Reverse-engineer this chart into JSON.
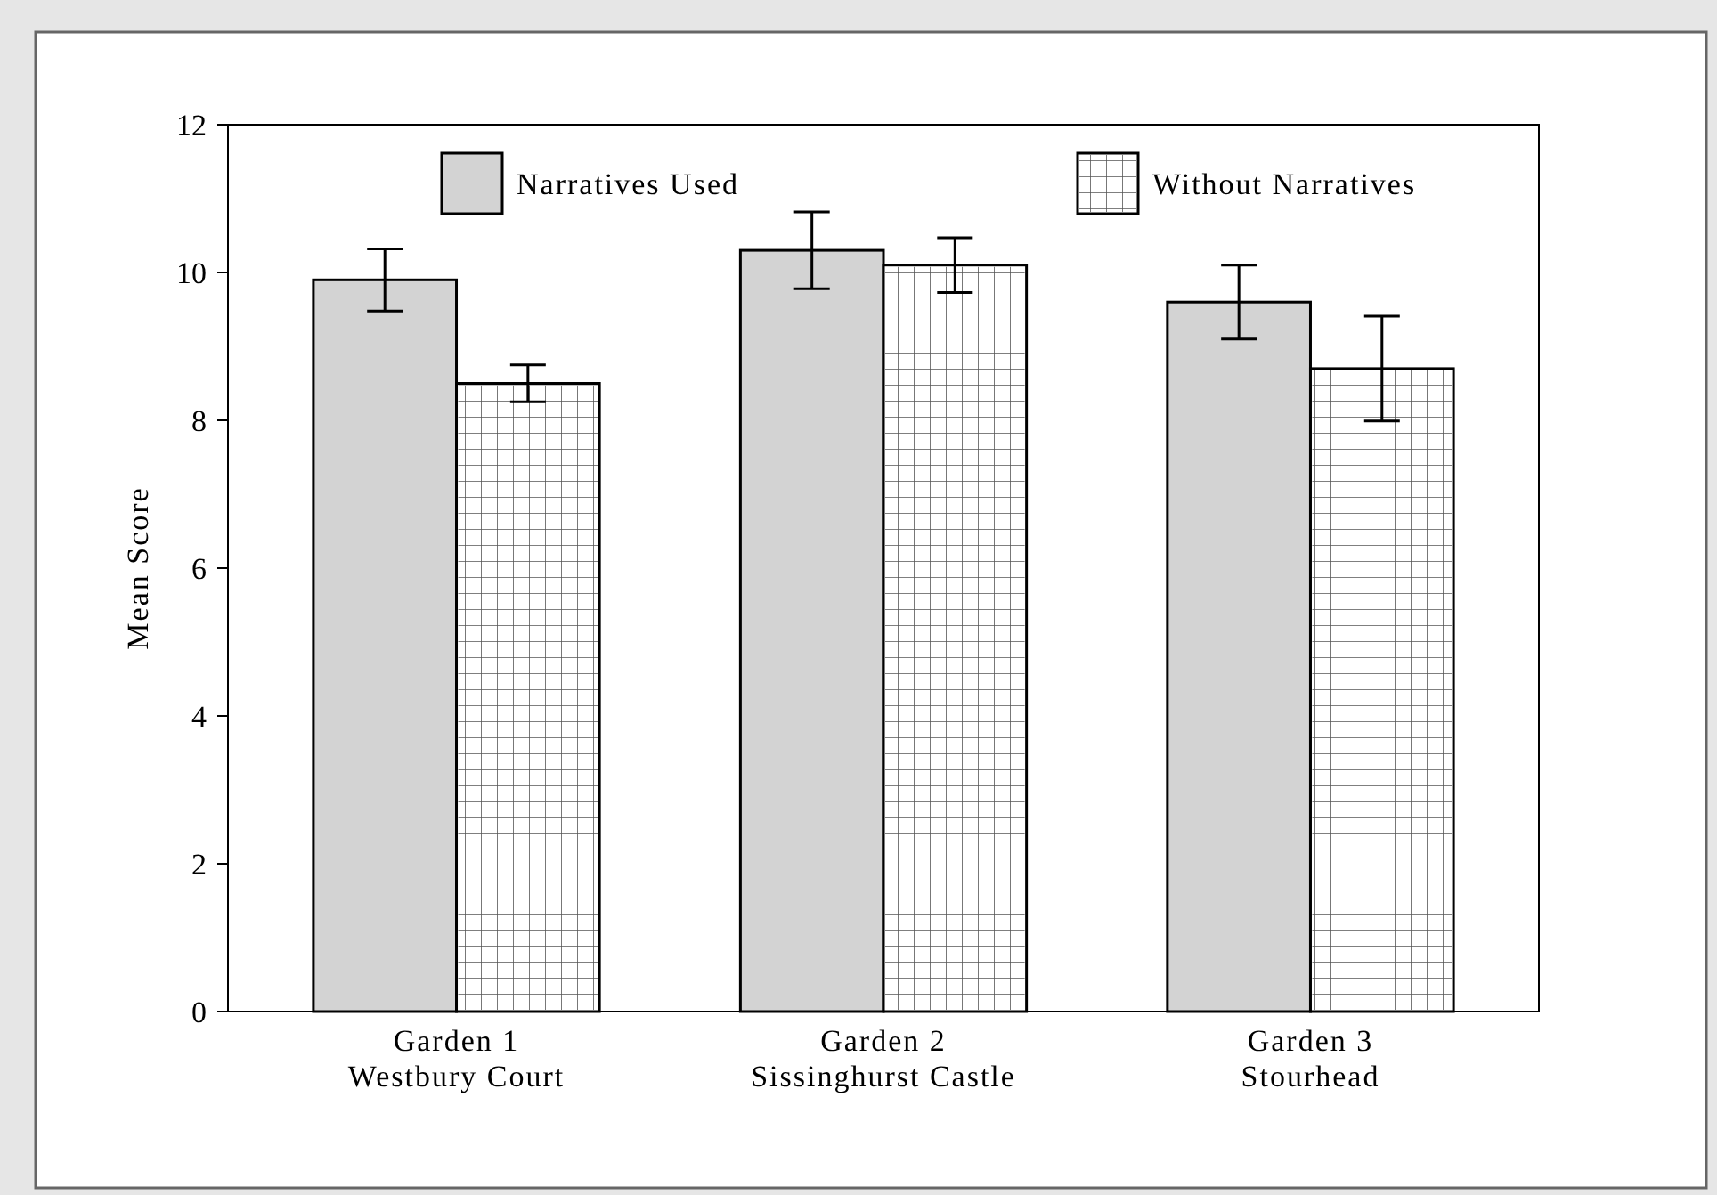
{
  "chart_data": {
    "type": "bar",
    "ylabel": "Mean Score",
    "categories": [
      "Garden 1\nWestbury Court",
      "Garden 2\nSissinghurst Castle",
      "Garden 3\nStourhead"
    ],
    "series": [
      {
        "name": "Narratives Used",
        "color": "#d3d3d3",
        "values": [
          9.9,
          10.3,
          9.6
        ],
        "errors": [
          0.42,
          0.52,
          0.5
        ]
      },
      {
        "name": "Without Narratives",
        "color": "#ffffff",
        "values": [
          8.5,
          10.1,
          8.7
        ],
        "errors": [
          0.25,
          0.37,
          0.71
        ]
      }
    ],
    "ylim": [
      0,
      12
    ],
    "yticks": [
      0,
      2,
      4,
      6,
      8,
      10,
      12
    ],
    "grid": false,
    "legend": "top"
  }
}
